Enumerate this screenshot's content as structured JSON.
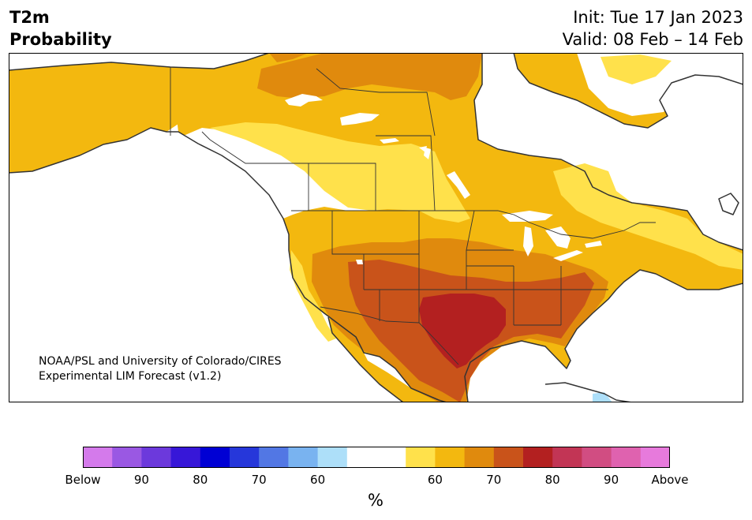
{
  "header": {
    "variable": "T2m",
    "quantity": "Probability",
    "init": "Init: Tue 17 Jan 2023",
    "valid": "Valid: 08 Feb – 14 Feb"
  },
  "credit": {
    "line1": "NOAA/PSL and University of Colorado/CIRES",
    "line2": "Experimental LIM Forecast (v1.2)"
  },
  "colorbar": {
    "unit": "%",
    "colors": [
      "#d47aeb",
      "#9a58e3",
      "#6c39dc",
      "#3717d8",
      "#0000d4",
      "#2637da",
      "#5277e4",
      "#79b3f0",
      "#addff9",
      "#ffffff",
      "#ffffff",
      "#ffe14b",
      "#f3b80f",
      "#e08a0d",
      "#c9531a",
      "#b32020",
      "#c23555",
      "#d14d82",
      "#df62af",
      "#e77adc"
    ],
    "tick_labels": [
      "Below",
      "90",
      "80",
      "70",
      "60",
      "60",
      "70",
      "80",
      "90",
      "Above"
    ]
  },
  "map": {
    "region": "North America",
    "legend_colors": {
      "near_normal": "#ffffff",
      "above_60": "#ffe14b",
      "above_65": "#f3b80f",
      "above_70": "#e08a0d",
      "above_75": "#c9531a",
      "above_80": "#b32020",
      "below_60": "#addff9",
      "coastline": "#333333"
    }
  }
}
